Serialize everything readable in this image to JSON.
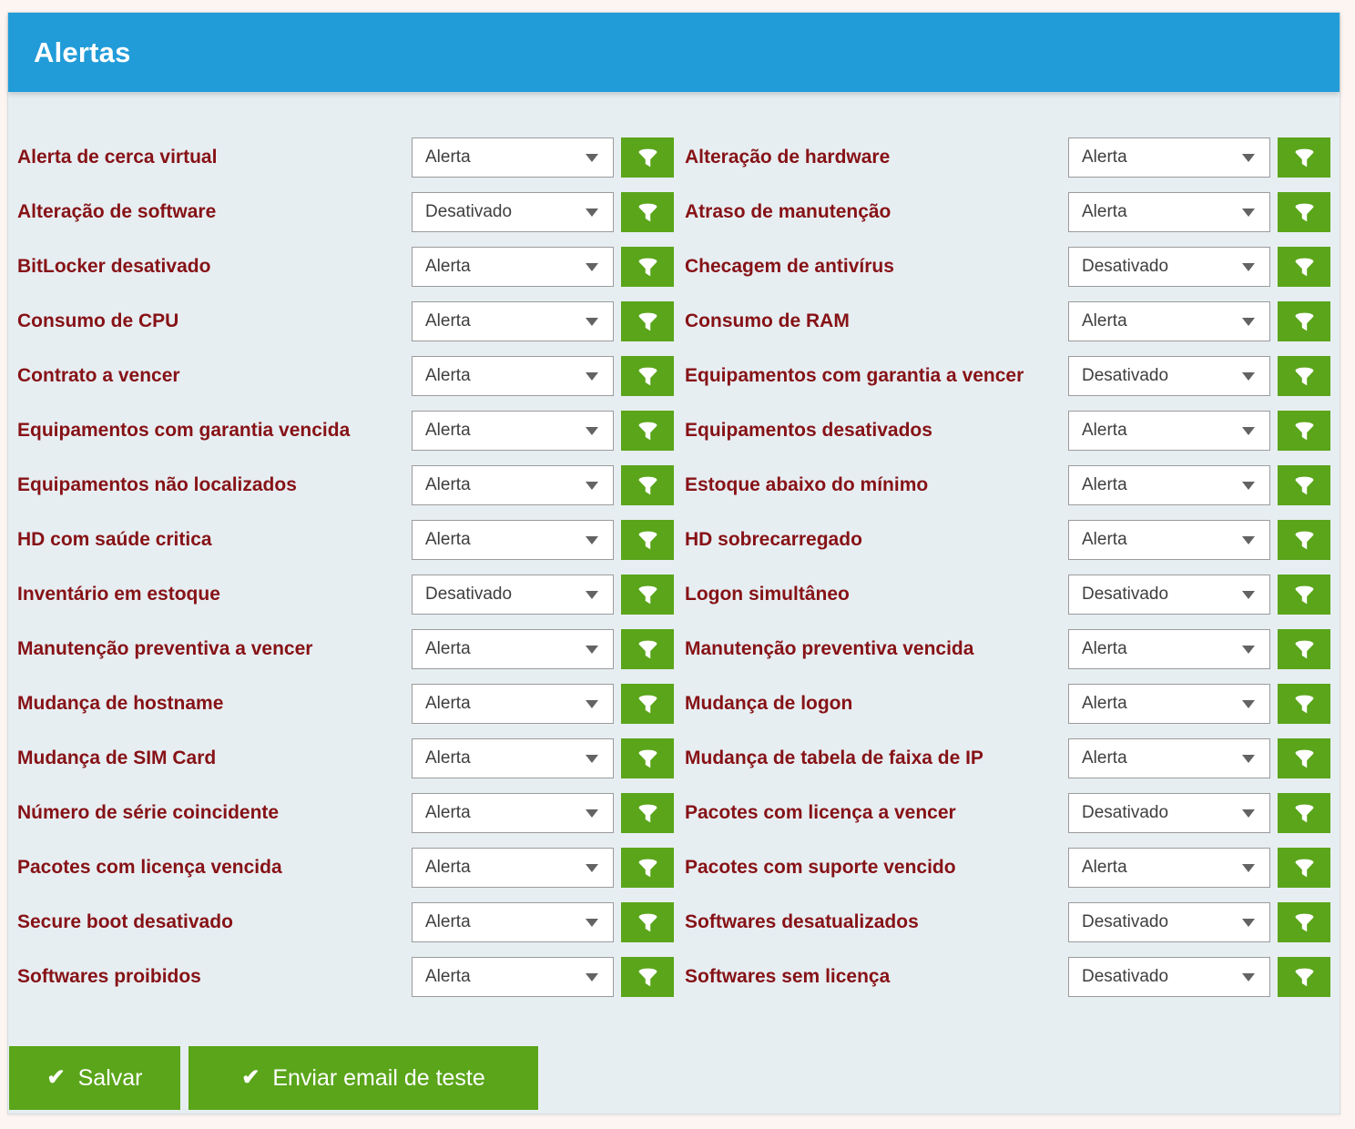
{
  "header": {
    "title": "Alertas"
  },
  "colors": {
    "header_blue": "#219cd8",
    "button_green": "#5aa51a",
    "label_red": "#861216",
    "panel_bg": "#e7eef2",
    "page_bg": "#fdf5f2"
  },
  "icons": {
    "filter": "funnel-icon",
    "dropdown": "chevron-down",
    "check": "✔"
  },
  "alerts": [
    {
      "label": "Alerta de cerca virtual",
      "value": "Alerta"
    },
    {
      "label": "Alteração de hardware",
      "value": "Alerta"
    },
    {
      "label": "Alteração de software",
      "value": "Desativado"
    },
    {
      "label": "Atraso de manutenção",
      "value": "Alerta"
    },
    {
      "label": "BitLocker desativado",
      "value": "Alerta"
    },
    {
      "label": "Checagem de antivírus",
      "value": "Desativado"
    },
    {
      "label": "Consumo de CPU",
      "value": "Alerta"
    },
    {
      "label": "Consumo de RAM",
      "value": "Alerta"
    },
    {
      "label": "Contrato a vencer",
      "value": "Alerta"
    },
    {
      "label": "Equipamentos com garantia a vencer",
      "value": "Desativado"
    },
    {
      "label": "Equipamentos com garantia vencida",
      "value": "Alerta"
    },
    {
      "label": "Equipamentos desativados",
      "value": "Alerta"
    },
    {
      "label": "Equipamentos não localizados",
      "value": "Alerta"
    },
    {
      "label": "Estoque abaixo do mínimo",
      "value": "Alerta"
    },
    {
      "label": "HD com saúde critica",
      "value": "Alerta"
    },
    {
      "label": "HD sobrecarregado",
      "value": "Alerta"
    },
    {
      "label": "Inventário em estoque",
      "value": "Desativado"
    },
    {
      "label": "Logon simultâneo",
      "value": "Desativado"
    },
    {
      "label": "Manutenção preventiva a vencer",
      "value": "Alerta"
    },
    {
      "label": "Manutenção preventiva vencida",
      "value": "Alerta"
    },
    {
      "label": "Mudança de hostname",
      "value": "Alerta"
    },
    {
      "label": "Mudança de logon",
      "value": "Alerta"
    },
    {
      "label": "Mudança de SIM Card",
      "value": "Alerta"
    },
    {
      "label": "Mudança de tabela de faixa de IP",
      "value": "Alerta"
    },
    {
      "label": "Número de série coincidente",
      "value": "Alerta"
    },
    {
      "label": "Pacotes com licença a vencer",
      "value": "Desativado"
    },
    {
      "label": "Pacotes com licença vencida",
      "value": "Alerta"
    },
    {
      "label": "Pacotes com suporte vencido",
      "value": "Alerta"
    },
    {
      "label": "Secure boot desativado",
      "value": "Alerta"
    },
    {
      "label": "Softwares desatualizados",
      "value": "Desativado"
    },
    {
      "label": "Softwares proibidos",
      "value": "Alerta"
    },
    {
      "label": "Softwares sem licença",
      "value": "Desativado"
    }
  ],
  "actions": {
    "check_icon": "✔",
    "save_label": "Salvar",
    "send_test_label": "Enviar email de teste"
  }
}
